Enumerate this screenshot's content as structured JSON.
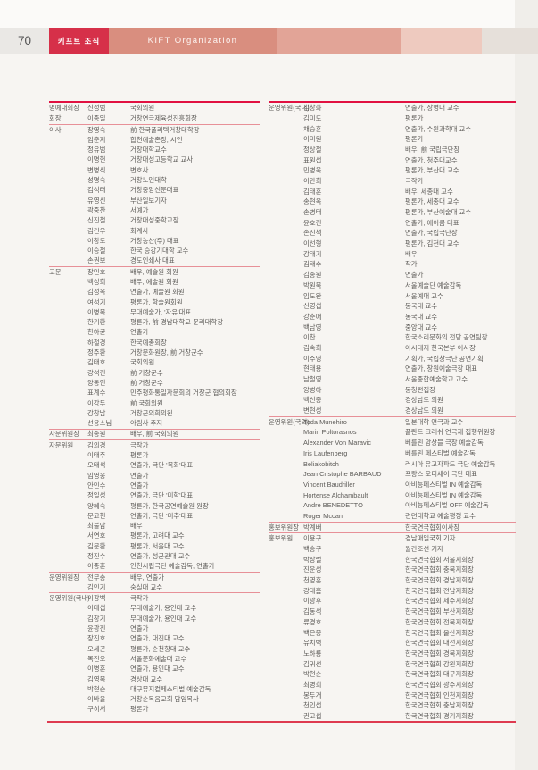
{
  "header": {
    "page_number": "70",
    "tab_korean": "키프트 조직",
    "tab_english": "KIFT Organization"
  },
  "colors": {
    "badge_red": "#d63049",
    "band_salmon": "#d98e7f",
    "rule_red": "#e11141",
    "divider_pink": "#e79098",
    "text_gray": "#5d5b58"
  },
  "columns": [
    {
      "sections": [
        {
          "role": "명예대회장",
          "rows": [
            {
              "name": "신성범",
              "title": "국회의원"
            }
          ]
        },
        {
          "role": "회장",
          "rows": [
            {
              "name": "이종일",
              "title": "거창연극제육성진흥회장"
            }
          ]
        },
        {
          "role": "이사",
          "rows": [
            {
              "name": "장영숙",
              "title": "前 한국폴리텍거창대학장"
            },
            {
              "name": "임춘지",
              "title": "합천예술촌장, 시인"
            },
            {
              "name": "정유범",
              "title": "거창대학교수"
            },
            {
              "name": "이명헌",
              "title": "거창대성고등학교 교사"
            },
            {
              "name": "변병식",
              "title": "변호사"
            },
            {
              "name": "성명숙",
              "title": "거창노인대학"
            },
            {
              "name": "김석태",
              "title": "거창중앙신문대표"
            },
            {
              "name": "유영신",
              "title": "부산일보기자"
            },
            {
              "name": "곽중찬",
              "title": "서예가"
            },
            {
              "name": "신진철",
              "title": "거창대성중학교장"
            },
            {
              "name": "김건우",
              "title": "회계사"
            },
            {
              "name": "이창도",
              "title": "거창농산(주) 대표"
            },
            {
              "name": "이승철",
              "title": "한국 승강기대학 교수"
            },
            {
              "name": "손권보",
              "title": "경도인쇄사 대표"
            }
          ]
        },
        {
          "role": "고문",
          "rows": [
            {
              "name": "장민호",
              "title": "배우, 예술원 회원"
            },
            {
              "name": "백성희",
              "title": "배우, 예술원 회원"
            },
            {
              "name": "김정옥",
              "title": "연출가, 예술원 회원"
            },
            {
              "name": "여석기",
              "title": "평론가, 학술원회원"
            },
            {
              "name": "이병복",
              "title": "무대예술가, '자유'대표"
            },
            {
              "name": "한기환",
              "title": "평론가, 前 경남대학교 문리대학장"
            },
            {
              "name": "한하균",
              "title": "연출가"
            },
            {
              "name": "하철경",
              "title": "한국예총회장"
            },
            {
              "name": "정주환",
              "title": "거창문화원장, 前 거창군수"
            },
            {
              "name": "김태호",
              "title": "국회의원"
            },
            {
              "name": "강석진",
              "title": "前 거창군수"
            },
            {
              "name": "양동인",
              "title": "前 거창군수"
            },
            {
              "name": "표계수",
              "title": "민주평화통일자문회의 거창군 협의회장"
            },
            {
              "name": "이강두",
              "title": "前 국회의원"
            },
            {
              "name": "강창남",
              "title": "거창군의회의원"
            },
            {
              "name": "선용스님",
              "title": "아림사 주지"
            }
          ]
        },
        {
          "role": "자문위원장",
          "rows": [
            {
              "name": "최종원",
              "title": "배우, 前 국회의원"
            }
          ]
        },
        {
          "role": "자문위원",
          "rows": [
            {
              "name": "김의경",
              "title": "극작가"
            },
            {
              "name": "이태주",
              "title": "평론가"
            },
            {
              "name": "오태석",
              "title": "연출가, 극단 '목화'대표"
            },
            {
              "name": "임영웅",
              "title": "연출가"
            },
            {
              "name": "안민수",
              "title": "연출가"
            },
            {
              "name": "정일성",
              "title": "연출가, 극단 '미학'대표"
            },
            {
              "name": "양혜숙",
              "title": "평론가, 한국공연예술원 원장"
            },
            {
              "name": "문고헌",
              "title": "연출가, 극단 '미추'대표"
            },
            {
              "name": "최불암",
              "title": "배우"
            },
            {
              "name": "서연호",
              "title": "평론가, 고려대 교수"
            },
            {
              "name": "김문환",
              "title": "평론가, 서울대 교수"
            },
            {
              "name": "정진수",
              "title": "연출가, 성균관대 교수"
            },
            {
              "name": "이종훈",
              "title": "인천시립극단 예술감독, 연출가"
            }
          ]
        },
        {
          "role": "운영위원장",
          "rows": [
            {
              "name": "전무송",
              "title": "배우, 연출가"
            },
            {
              "name": "김민기",
              "title": "숭실대 교수"
            }
          ]
        },
        {
          "role": "운영위원(국내)",
          "rows": [
            {
              "name": "이강백",
              "title": "극작가"
            },
            {
              "name": "이태섭",
              "title": "무대예술가, 용인대 교수"
            },
            {
              "name": "김창기",
              "title": "무대예술가, 용인대 교수"
            },
            {
              "name": "윤광진",
              "title": "연출가"
            },
            {
              "name": "장진호",
              "title": "연출가, 대진대 교수"
            },
            {
              "name": "오세곤",
              "title": "평론가, 순천향대 교수"
            },
            {
              "name": "복진오",
              "title": "서울문화예술대 교수"
            },
            {
              "name": "이병훈",
              "title": "연출가, 용인대 교수"
            },
            {
              "name": "김영복",
              "title": "경상대 교수"
            },
            {
              "name": "박현순",
              "title": "대구뮤지컬페스티벌 예술감독"
            },
            {
              "name": "이바울",
              "title": "거창순복음교회 담임목사"
            },
            {
              "name": "구히서",
              "title": "평론가"
            }
          ]
        }
      ]
    },
    {
      "sections": [
        {
          "role": "운영위원(국내)",
          "rows": [
            {
              "name": "김창화",
              "title": "연출가, 상명대 교수"
            },
            {
              "name": "김미도",
              "title": "평론가"
            },
            {
              "name": "채승훈",
              "title": "연출가, 수원과학대 교수"
            },
            {
              "name": "이미원",
              "title": "평론가"
            },
            {
              "name": "정상철",
              "title": "배우, 前 국립극단장"
            },
            {
              "name": "표원섭",
              "title": "연출가, 청주대교수"
            },
            {
              "name": "민병욱",
              "title": "평론가, 부산대 교수"
            },
            {
              "name": "이만희",
              "title": "극작가"
            },
            {
              "name": "김태훈",
              "title": "배우, 세종대 교수"
            },
            {
              "name": "송현옥",
              "title": "평론가, 세종대 교수"
            },
            {
              "name": "손병태",
              "title": "평론가, 부산예술대 교수"
            },
            {
              "name": "윤호진",
              "title": "연출가, 에이콤 대표"
            },
            {
              "name": "손진책",
              "title": "연출가, 국립극단장"
            },
            {
              "name": "이선형",
              "title": "평론가, 김천대 교수"
            },
            {
              "name": "강태기",
              "title": "배우"
            },
            {
              "name": "김태수",
              "title": "작가"
            },
            {
              "name": "김종원",
              "title": "연출가"
            },
            {
              "name": "박원묵",
              "title": "서울예술단 예술감독"
            },
            {
              "name": "임도완",
              "title": "서울예대 교수"
            },
            {
              "name": "신영섭",
              "title": "동국대 교수"
            },
            {
              "name": "강춘애",
              "title": "동국대 교수"
            },
            {
              "name": "백남영",
              "title": "중앙대 교수"
            },
            {
              "name": "이찬",
              "title": "한국소리문화의 전당 공연팀장"
            },
            {
              "name": "김숙희",
              "title": "아시테지 한국본부 이사장"
            },
            {
              "name": "이주영",
              "title": "기획가, 국립창극단 공연기획"
            },
            {
              "name": "현태용",
              "title": "연출가, 창원예술극장 대표"
            },
            {
              "name": "남철영",
              "title": "서울종합예술학교 교수"
            },
            {
              "name": "양병하",
              "title": "동청편집장"
            },
            {
              "name": "백신종",
              "title": "경상남도 의원"
            },
            {
              "name": "변현성",
              "title": "경상남도 의원"
            }
          ]
        },
        {
          "role": "운영위원(국외)",
          "rows": [
            {
              "name": "Toda Munehiro",
              "title": "일본대학 연극과 교수"
            },
            {
              "name": "Marin Poltorasnos",
              "title": "폴란드 크래쉬 연극제 집행위원장"
            },
            {
              "name": "Alexander Von Maravic",
              "title": "베를린 앙상블 극장 예술감독"
            },
            {
              "name": "Iris Laufenberg",
              "title": "베를린 페스티벌 예술감독"
            },
            {
              "name": "Beliakobitch",
              "title": "러시아 유고자파드 극단 예술감독"
            },
            {
              "name": "Jean Cristophe BARBAUD",
              "title": "프랑스 오디세이 극단 대표"
            },
            {
              "name": "Vincent Baudriller",
              "title": "아비뇽페스티벌 IN 예술감독"
            },
            {
              "name": "Hortense Alchambault",
              "title": "아비뇽페스티벌 IN 예술감독"
            },
            {
              "name": "Andre BENEDETTO",
              "title": "아비뇽페스티벌 OFF 예술감독"
            },
            {
              "name": "Roger Mccan",
              "title": "런던대학교 예술행정 교수"
            }
          ]
        },
        {
          "role": "홍보위원장",
          "rows": [
            {
              "name": "박계배",
              "title": "한국연극협회이사장"
            }
          ]
        },
        {
          "role": "홍보위원",
          "rows": [
            {
              "name": "이용구",
              "title": "경남매일국회 기자"
            },
            {
              "name": "백승구",
              "title": "월간조선 기자"
            },
            {
              "name": "박장렬",
              "title": "한국연극협회 서울지회장"
            },
            {
              "name": "진운성",
              "title": "한국연극협회 충북지회장"
            },
            {
              "name": "천영훈",
              "title": "한국연극협회 경남지회장"
            },
            {
              "name": "강대흠",
              "title": "한국연극협회 전남지회장"
            },
            {
              "name": "이광후",
              "title": "한국연극협회 제주지회장"
            },
            {
              "name": "김동석",
              "title": "한국연극협회 부산지회장"
            },
            {
              "name": "류경호",
              "title": "한국연극협회 전북지회장"
            },
            {
              "name": "백은몽",
              "title": "한국연극협회 울산지회장"
            },
            {
              "name": "유치벽",
              "title": "한국연극협회 대전지회장"
            },
            {
              "name": "노하룡",
              "title": "한국연극협회 경북지회장"
            },
            {
              "name": "김귀선",
              "title": "한국연극협회 강원지회장"
            },
            {
              "name": "박현순",
              "title": "한국연극협회 대구지회장"
            },
            {
              "name": "최병희",
              "title": "한국연극협회 광주지회장"
            },
            {
              "name": "봉두개",
              "title": "한국연극협회 인천지회장"
            },
            {
              "name": "천인섭",
              "title": "한국연극협회 충남지회장"
            },
            {
              "name": "권고섭",
              "title": "한국연극협회 경기지회장"
            }
          ]
        }
      ]
    }
  ]
}
